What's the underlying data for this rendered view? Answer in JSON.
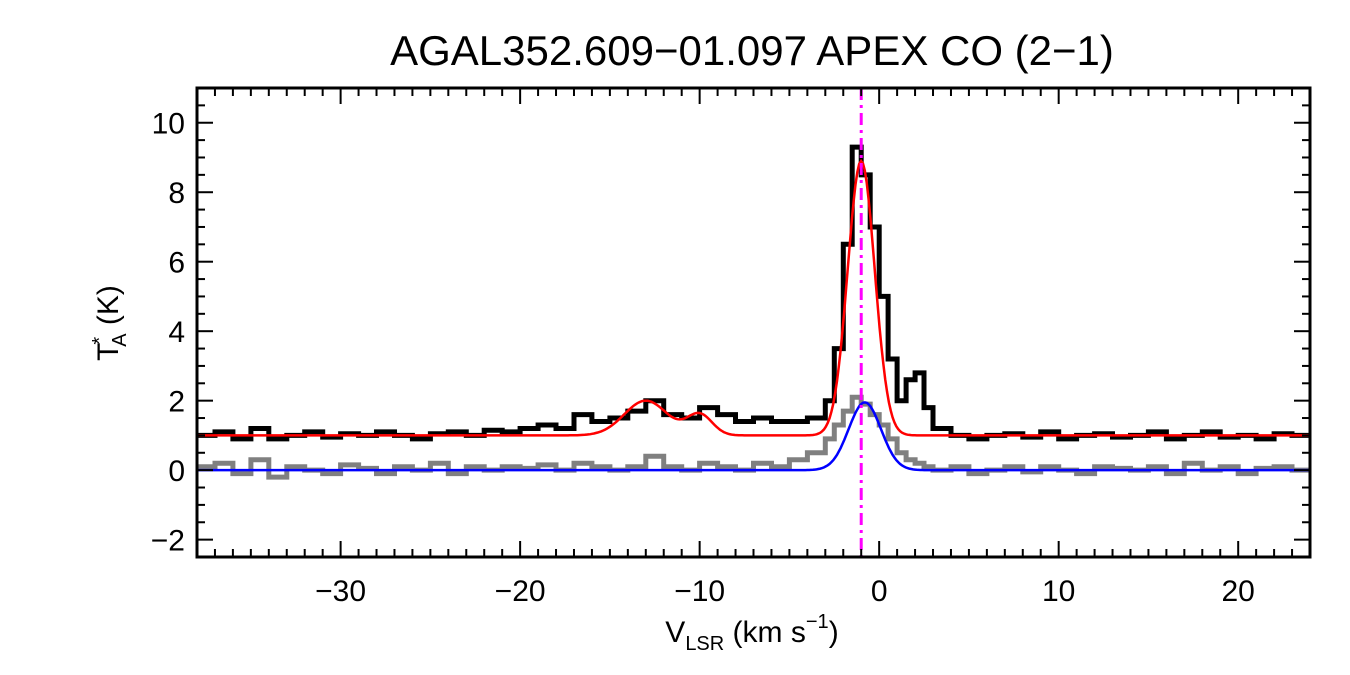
{
  "chart_data": {
    "type": "line",
    "title": "AGAL352.609−01.097  APEX CO (2−1)",
    "xlabel": {
      "main": "V",
      "sub": "LSR",
      "rest": " (km s",
      "sup": "−1",
      "end": ")"
    },
    "ylabel": {
      "main": "T",
      "sup": "*",
      "sub": "A",
      "rest": " (K)"
    },
    "xlim": [
      -38,
      24
    ],
    "ylim": [
      -2.5,
      11
    ],
    "x_ticks": [
      {
        "value": -30,
        "label": "−30"
      },
      {
        "value": -20,
        "label": "−20"
      },
      {
        "value": -10,
        "label": "−10"
      },
      {
        "value": 0,
        "label": "0"
      },
      {
        "value": 10,
        "label": "10"
      },
      {
        "value": 20,
        "label": "20"
      }
    ],
    "y_ticks": [
      {
        "value": -2,
        "label": "−2"
      },
      {
        "value": 0,
        "label": "0"
      },
      {
        "value": 2,
        "label": "2"
      },
      {
        "value": 4,
        "label": "4"
      },
      {
        "value": 6,
        "label": "6"
      },
      {
        "value": 8,
        "label": "8"
      },
      {
        "value": 10,
        "label": "10"
      }
    ],
    "vline": {
      "x": -1.0,
      "color": "#ff00ff",
      "style": "dash-dot"
    },
    "series": [
      {
        "kind": "histogram",
        "color": "#000000",
        "x": [
          -38,
          -37,
          -36,
          -35,
          -34,
          -33,
          -32,
          -31,
          -30,
          -29,
          -28,
          -27,
          -26,
          -25,
          -24,
          -23,
          -22,
          -21,
          -20,
          -19,
          -18,
          -17,
          -16,
          -15,
          -14,
          -13,
          -12,
          -11,
          -10,
          -9,
          -8,
          -7,
          -6,
          -5,
          -4,
          -3,
          -2.5,
          -2,
          -1.5,
          -1,
          -0.5,
          0,
          0.5,
          1,
          1.5,
          2,
          2.5,
          3,
          4,
          5,
          6,
          7,
          8,
          9,
          10,
          11,
          12,
          13,
          14,
          15,
          16,
          17,
          18,
          19,
          20,
          21,
          22,
          23,
          24
        ],
        "y": [
          1.0,
          1.1,
          0.9,
          1.2,
          0.9,
          1.0,
          1.1,
          0.95,
          1.05,
          1.0,
          1.1,
          1.0,
          0.9,
          1.05,
          1.1,
          1.0,
          1.15,
          1.1,
          1.2,
          1.3,
          1.2,
          1.6,
          1.4,
          1.5,
          1.7,
          2.0,
          1.6,
          1.5,
          1.8,
          1.6,
          1.4,
          1.5,
          1.4,
          1.4,
          1.5,
          2.0,
          3.5,
          6.5,
          9.3,
          8.5,
          7.0,
          5.0,
          3.2,
          2.0,
          2.6,
          2.8,
          1.8,
          1.2,
          1.0,
          0.9,
          1.0,
          1.05,
          0.95,
          1.1,
          0.9,
          1.0,
          1.05,
          0.95,
          1.0,
          1.1,
          0.9,
          1.0,
          1.1,
          0.95,
          1.0,
          0.9,
          1.05,
          1.0,
          1.0
        ]
      },
      {
        "kind": "histogram",
        "color": "#808080",
        "x": [
          -38,
          -37,
          -36,
          -35,
          -34,
          -33,
          -32,
          -31,
          -30,
          -29,
          -28,
          -27,
          -26,
          -25,
          -24,
          -23,
          -22,
          -21,
          -20,
          -19,
          -18,
          -17,
          -16,
          -15,
          -14,
          -13,
          -12,
          -11,
          -10,
          -9,
          -8,
          -7,
          -6,
          -5,
          -4,
          -3,
          -2.5,
          -2,
          -1.5,
          -1,
          -0.5,
          0,
          0.5,
          1,
          1.5,
          2,
          2.5,
          3,
          4,
          5,
          6,
          7,
          8,
          9,
          10,
          11,
          12,
          13,
          14,
          15,
          16,
          17,
          18,
          19,
          20,
          21,
          22,
          23,
          24
        ],
        "y": [
          0.1,
          0.2,
          -0.1,
          0.3,
          -0.2,
          0.1,
          0.0,
          -0.1,
          0.15,
          0.05,
          -0.1,
          0.1,
          0.0,
          0.2,
          -0.1,
          0.1,
          0.0,
          0.1,
          0.05,
          0.15,
          0.0,
          0.2,
          0.1,
          0.0,
          0.1,
          0.4,
          0.1,
          0.0,
          0.2,
          0.1,
          0.0,
          0.2,
          0.1,
          0.3,
          0.5,
          0.9,
          1.3,
          1.7,
          2.1,
          1.9,
          1.6,
          1.3,
          0.9,
          0.5,
          0.3,
          0.2,
          0.1,
          0.0,
          0.1,
          -0.1,
          0.0,
          0.1,
          -0.05,
          0.1,
          0.0,
          -0.1,
          0.1,
          0.05,
          0.0,
          0.1,
          -0.1,
          0.2,
          0.0,
          0.1,
          -0.1,
          0.05,
          0.1,
          0.0,
          0.0
        ]
      },
      {
        "kind": "model",
        "color": "#ff0000",
        "baseline": 1.0,
        "components": [
          {
            "amp": 7.9,
            "center": -1.0,
            "sigma": 0.75
          },
          {
            "amp": 1.0,
            "center": -13.0,
            "sigma": 1.2
          },
          {
            "amp": 0.6,
            "center": -10.0,
            "sigma": 0.7
          }
        ]
      },
      {
        "kind": "model",
        "color": "#0000ff",
        "baseline": 0.0,
        "components": [
          {
            "amp": 1.95,
            "center": -0.8,
            "sigma": 0.9
          }
        ]
      }
    ]
  }
}
